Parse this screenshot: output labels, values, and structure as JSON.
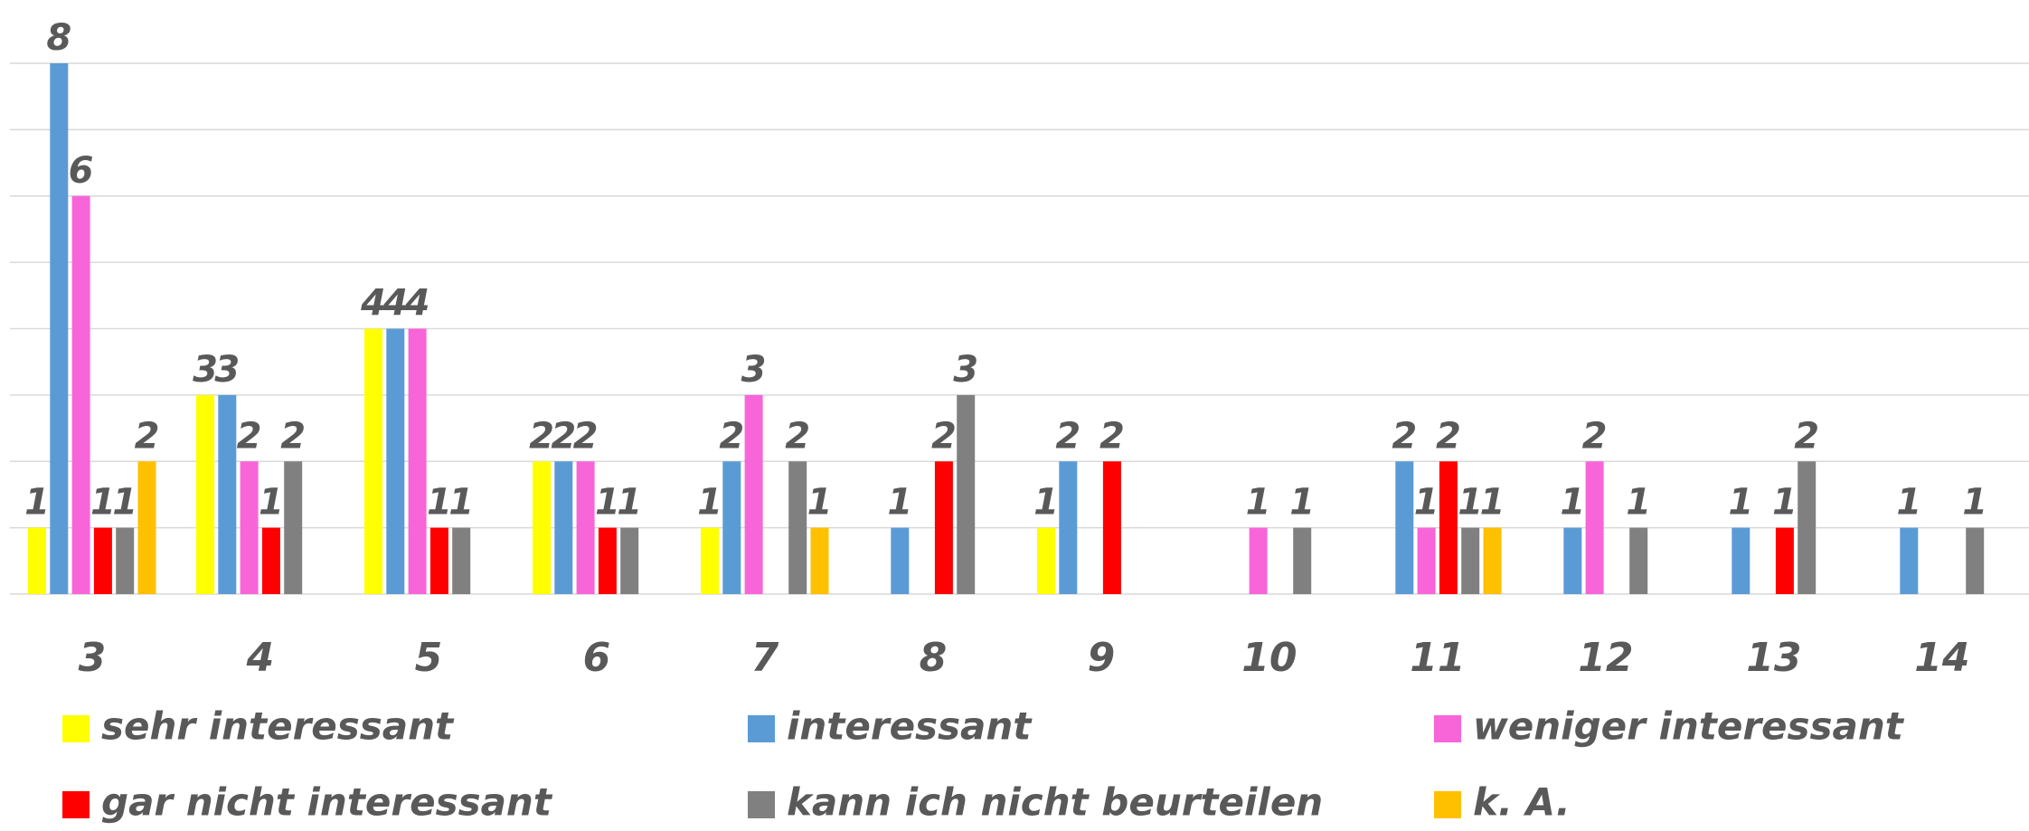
{
  "chart_data": {
    "type": "bar",
    "categories": [
      "3",
      "4",
      "5",
      "6",
      "7",
      "8",
      "9",
      "10",
      "11",
      "12",
      "13",
      "14"
    ],
    "series": [
      {
        "name": "sehr interessant",
        "color": "#ffff00",
        "values": [
          1,
          3,
          4,
          2,
          1,
          null,
          1,
          null,
          null,
          null,
          null,
          null
        ]
      },
      {
        "name": "interessant",
        "color": "#5b9bd5",
        "values": [
          8,
          3,
          4,
          2,
          2,
          1,
          2,
          null,
          2,
          1,
          1,
          1
        ]
      },
      {
        "name": "weniger interessant",
        "color": "#f865d8",
        "values": [
          6,
          2,
          4,
          2,
          3,
          null,
          null,
          1,
          1,
          2,
          null,
          null
        ]
      },
      {
        "name": "gar nicht interessant",
        "color": "#ff0000",
        "values": [
          1,
          1,
          1,
          1,
          null,
          2,
          2,
          null,
          2,
          null,
          1,
          null
        ]
      },
      {
        "name": "kann ich nicht beurteilen",
        "color": "#808080",
        "values": [
          1,
          2,
          1,
          1,
          2,
          3,
          null,
          1,
          1,
          1,
          2,
          1
        ]
      },
      {
        "name": "k. A.",
        "color": "#ffc000",
        "values": [
          2,
          null,
          null,
          null,
          1,
          null,
          null,
          null,
          1,
          null,
          null,
          null
        ]
      }
    ],
    "ylim": [
      0,
      8
    ],
    "yticks": [
      0,
      1,
      2,
      3,
      4,
      5,
      6,
      7,
      8
    ],
    "grid": true,
    "legend": "bottom"
  }
}
